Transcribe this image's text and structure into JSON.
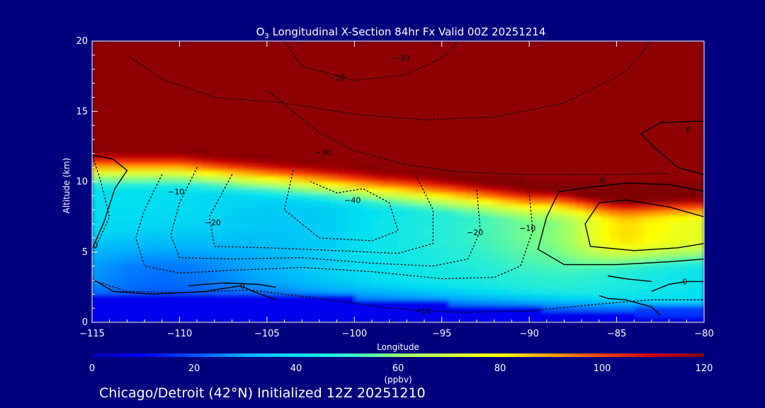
{
  "colors": {
    "background": "#00007f",
    "text": "#ffffff",
    "contour": "#000000",
    "colormap": [
      "#0000aa",
      "#0000ff",
      "#0050ff",
      "#00aaff",
      "#00e0f0",
      "#30f0d0",
      "#90ff70",
      "#d0ff40",
      "#ffff00",
      "#ffa000",
      "#ff4000",
      "#d00000",
      "#800000"
    ]
  },
  "chart_data": {
    "type": "heatmap",
    "title_main": "O",
    "title_sub": "3",
    "title_rest": " Longitudinal X-Section 84hr  Fx Valid 00Z 20251214",
    "xlabel": "Longitude",
    "ylabel": "Altitude (km)",
    "xlim": [
      -115,
      -80
    ],
    "ylim": [
      0,
      20
    ],
    "x_ticks": [
      -115,
      -110,
      -105,
      -100,
      -95,
      -90,
      -85,
      -80
    ],
    "x_tick_labels": [
      "−115",
      "−110",
      "−105",
      "−100",
      "−95",
      "−90",
      "−85",
      "−80"
    ],
    "y_ticks": [
      0,
      5,
      10,
      15,
      20
    ],
    "y_tick_labels": [
      "0",
      "5",
      "10",
      "15",
      "20"
    ],
    "colorbar": {
      "range": [
        0,
        120
      ],
      "ticks": [
        0,
        20,
        40,
        60,
        80,
        100,
        120
      ],
      "tick_labels": [
        "0",
        "20",
        "40",
        "60",
        "80",
        "100",
        "120"
      ],
      "unit": "(ppbv)"
    },
    "contour_labels": [
      {
        "x": -101,
        "y": 17.4,
        "text": "−20"
      },
      {
        "x": -97.3,
        "y": 18.8,
        "text": "−30"
      },
      {
        "x": -101.8,
        "y": 12.1,
        "text": "−30"
      },
      {
        "x": -110.2,
        "y": 9.3,
        "text": "−10"
      },
      {
        "x": -108.1,
        "y": 7.1,
        "text": "−20"
      },
      {
        "x": -100.1,
        "y": 8.7,
        "text": "−40"
      },
      {
        "x": -93.1,
        "y": 6.4,
        "text": "−20"
      },
      {
        "x": -90.1,
        "y": 6.7,
        "text": "−10"
      },
      {
        "x": -85.8,
        "y": 10.1,
        "text": "0"
      },
      {
        "x": -80.9,
        "y": 13.7,
        "text": "0"
      },
      {
        "x": -114.8,
        "y": 5.5,
        "text": "0"
      },
      {
        "x": -106.4,
        "y": 2.6,
        "text": "0"
      },
      {
        "x": -96.1,
        "y": 0.8,
        "text": "−10"
      },
      {
        "x": -81.1,
        "y": 2.9,
        "text": "0"
      }
    ],
    "contours": [
      {
        "style": "dotted",
        "points": [
          [
            -113,
            19
          ],
          [
            -111,
            17.3
          ],
          [
            -108,
            16
          ],
          [
            -104,
            15.6
          ],
          [
            -100,
            14.8
          ],
          [
            -96,
            14.4
          ],
          [
            -92,
            14.6
          ],
          [
            -88,
            15.6
          ],
          [
            -84.5,
            17.8
          ],
          [
            -83,
            20
          ]
        ]
      },
      {
        "style": "dotted",
        "points": [
          [
            -104,
            20
          ],
          [
            -103,
            18.2
          ],
          [
            -100,
            17.2
          ],
          [
            -97,
            17.6
          ],
          [
            -95,
            18.8
          ],
          [
            -94,
            20
          ]
        ]
      },
      {
        "style": "dotted",
        "points": [
          [
            -105,
            16.5
          ],
          [
            -102,
            13.5
          ],
          [
            -100,
            12.2
          ],
          [
            -97,
            11.2
          ],
          [
            -94,
            10.7
          ],
          [
            -90,
            10.5
          ],
          [
            -85,
            10.5
          ],
          [
            -82,
            10.6
          ]
        ]
      },
      {
        "style": "dotted",
        "points": [
          [
            -111,
            10.5
          ],
          [
            -112,
            8
          ],
          [
            -112.5,
            6
          ],
          [
            -112,
            4
          ],
          [
            -110,
            3.5
          ],
          [
            -107,
            3.7
          ],
          [
            -103,
            3.9
          ],
          [
            -99,
            3.6
          ],
          [
            -95,
            3.1
          ],
          [
            -92,
            3.2
          ],
          [
            -90.5,
            4
          ],
          [
            -89.8,
            6.5
          ],
          [
            -90,
            9.2
          ]
        ]
      },
      {
        "style": "dotted",
        "points": [
          [
            -109,
            11
          ],
          [
            -110,
            8.5
          ],
          [
            -110.5,
            6.2
          ],
          [
            -110,
            4.6
          ],
          [
            -107,
            4.5
          ],
          [
            -103,
            4.6
          ],
          [
            -99,
            4.2
          ],
          [
            -95.5,
            4
          ],
          [
            -93.5,
            4.5
          ],
          [
            -92.8,
            6.5
          ],
          [
            -93,
            9.5
          ]
        ]
      },
      {
        "style": "dotted",
        "points": [
          [
            -107,
            10.5
          ],
          [
            -108.3,
            7.5
          ],
          [
            -108,
            5.4
          ],
          [
            -105,
            5.3
          ],
          [
            -101,
            5.1
          ],
          [
            -97.5,
            4.9
          ],
          [
            -95.5,
            5.6
          ],
          [
            -95.5,
            8
          ],
          [
            -96.5,
            10.5
          ]
        ]
      },
      {
        "style": "dotted",
        "points": [
          [
            -103.5,
            10.8
          ],
          [
            -104,
            8
          ],
          [
            -102,
            6
          ],
          [
            -99,
            5.8
          ],
          [
            -97.5,
            6.5
          ],
          [
            -98,
            8.5
          ],
          [
            -99.5,
            9.5
          ],
          [
            -101,
            9.2
          ],
          [
            -102.5,
            10
          ]
        ]
      },
      {
        "style": "dotted",
        "points": [
          [
            -115,
            3
          ],
          [
            -113,
            2.2
          ],
          [
            -110,
            2.1
          ],
          [
            -106,
            2.3
          ],
          [
            -102,
            1.7
          ],
          [
            -98,
            1
          ],
          [
            -94,
            0.7
          ],
          [
            -90,
            0.8
          ],
          [
            -86,
            1.3
          ],
          [
            -83,
            1.6
          ],
          [
            -80,
            1.6
          ]
        ]
      },
      {
        "style": "dotted",
        "points": [
          [
            -115,
            12
          ],
          [
            -114.5,
            10
          ],
          [
            -114,
            7.5
          ],
          [
            -115,
            4.8
          ]
        ]
      },
      {
        "style": "solid",
        "points": [
          [
            -115,
            11.9
          ],
          [
            -113.8,
            11.6
          ],
          [
            -113,
            10.8
          ],
          [
            -113.7,
            9.5
          ],
          [
            -114.3,
            7.2
          ],
          [
            -115,
            5.2
          ]
        ]
      },
      {
        "style": "solid",
        "points": [
          [
            -115,
            3.1
          ],
          [
            -113.8,
            2.2
          ],
          [
            -111.5,
            2
          ],
          [
            -108.5,
            2.2
          ],
          [
            -106.5,
            2.6
          ],
          [
            -105.8,
            2.2
          ],
          [
            -104.5,
            1.6
          ]
        ]
      },
      {
        "style": "solid",
        "points": [
          [
            -109.5,
            2.6
          ],
          [
            -107.5,
            2.8
          ],
          [
            -105.5,
            2.7
          ],
          [
            -104.5,
            2.5
          ]
        ]
      },
      {
        "style": "solid",
        "points": [
          [
            -80,
            9.3
          ],
          [
            -82,
            9.8
          ],
          [
            -84.5,
            9.9
          ],
          [
            -86.5,
            9.6
          ],
          [
            -88.3,
            9.3
          ],
          [
            -89,
            7.5
          ],
          [
            -89.5,
            5.2
          ],
          [
            -88,
            4.1
          ],
          [
            -85,
            4.1
          ],
          [
            -82,
            4.3
          ],
          [
            -80,
            4.5
          ]
        ]
      },
      {
        "style": "solid",
        "points": [
          [
            -80,
            7.5
          ],
          [
            -82,
            8.2
          ],
          [
            -84.5,
            8.7
          ],
          [
            -86,
            8.5
          ],
          [
            -86.8,
            7
          ],
          [
            -86.5,
            5.4
          ],
          [
            -84,
            5.1
          ],
          [
            -81.5,
            5.3
          ],
          [
            -80,
            5.6
          ]
        ]
      },
      {
        "style": "solid",
        "points": [
          [
            -80,
            10.5
          ],
          [
            -81.5,
            11
          ],
          [
            -82.8,
            12.4
          ],
          [
            -83.6,
            13.4
          ],
          [
            -82.5,
            14.2
          ],
          [
            -80,
            14.3
          ]
        ]
      },
      {
        "style": "solid",
        "points": [
          [
            -83,
            2.2
          ],
          [
            -82,
            2.7
          ],
          [
            -81,
            2.9
          ],
          [
            -80,
            2.9
          ]
        ]
      },
      {
        "style": "solid",
        "points": [
          [
            -82.5,
            0.5
          ],
          [
            -83,
            1.1
          ],
          [
            -84.5,
            1.6
          ],
          [
            -85.5,
            1.7
          ],
          [
            -86,
            1.9
          ]
        ]
      },
      {
        "style": "solid",
        "points": [
          [
            -85.5,
            3.3
          ],
          [
            -84.5,
            3.1
          ],
          [
            -83,
            2.9
          ]
        ]
      }
    ]
  },
  "footer": {
    "caption": "Chicago/Detroit (42°N) Initialized 12Z 20251210"
  }
}
